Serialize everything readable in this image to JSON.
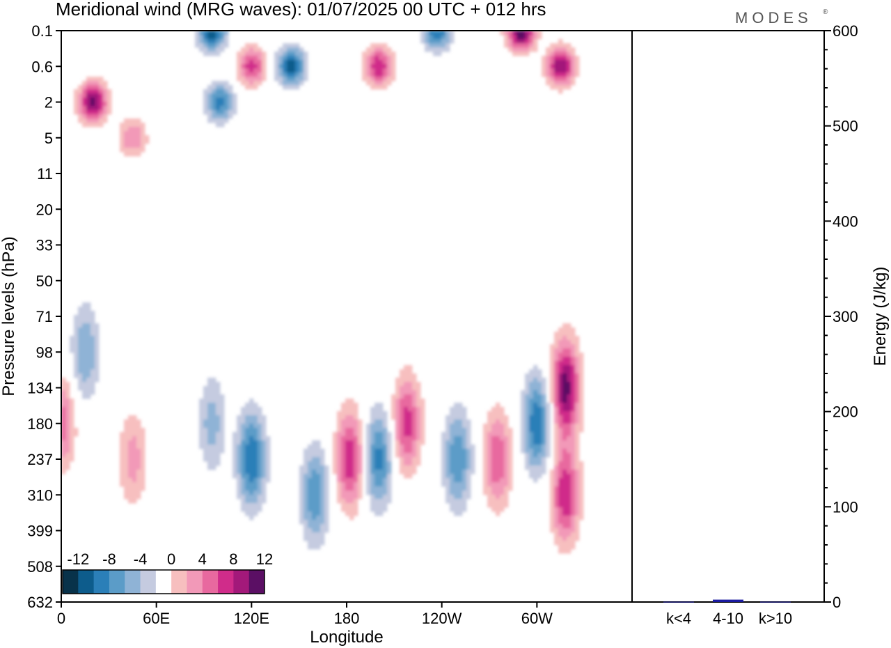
{
  "chart_data": [
    {
      "type": "heatmap",
      "title": "Meridional wind (MRG waves):  01/07/2025  00 UTC  + 012 hrs",
      "xlabel": "Longitude",
      "ylabel": "Pressure levels (hPa)",
      "x_ticks": [
        "0",
        "60E",
        "120E",
        "180",
        "120W",
        "60W"
      ],
      "y_ticks": [
        "0.1",
        "0.6",
        "2",
        "5",
        "11",
        "20",
        "33",
        "50",
        "71",
        "98",
        "134",
        "180",
        "237",
        "310",
        "399",
        "508",
        "632"
      ],
      "colorbar": {
        "tick_labels": [
          "-12",
          "-8",
          "-4",
          "0",
          "4",
          "8",
          "12"
        ],
        "levels": [
          -14,
          -12,
          -10,
          -8,
          -6,
          -4,
          -2,
          2,
          4,
          6,
          8,
          10,
          12,
          14
        ],
        "colors": [
          "#08324a",
          "#0d5c8c",
          "#2b7fb8",
          "#5b9cc8",
          "#8fb3d6",
          "#c5cbe0",
          "#ffffff",
          "#f7bfbf",
          "#f299b8",
          "#e8699f",
          "#d02c8a",
          "#a3197a",
          "#5b0f64"
        ]
      },
      "features": [
        {
          "lon": 20,
          "level": "2",
          "value": 13
        },
        {
          "lon": 45,
          "level": "5",
          "value": 6
        },
        {
          "lon": 120,
          "level": "0.6",
          "value": 9
        },
        {
          "lon": 100,
          "level": "2",
          "value": -9
        },
        {
          "lon": 145,
          "level": "0.6",
          "value": -11
        },
        {
          "lon": 95,
          "level": "0.1",
          "value": -12
        },
        {
          "lon": 200,
          "level": "0.6",
          "value": 10
        },
        {
          "lon": 237,
          "level": "0.1",
          "value": -10
        },
        {
          "lon": 290,
          "level": "0.1",
          "value": 14
        },
        {
          "lon": 315,
          "level": "0.6",
          "value": 12
        },
        {
          "lon": 15,
          "level": "98",
          "value": -6
        },
        {
          "lon": 45,
          "level": "237",
          "value": 5
        },
        {
          "lon": 95,
          "level": "180",
          "value": -5
        },
        {
          "lon": 120,
          "level": "237",
          "value": -10
        },
        {
          "lon": 160,
          "level": "310",
          "value": -8
        },
        {
          "lon": 182,
          "level": "237",
          "value": 10
        },
        {
          "lon": 200,
          "level": "237",
          "value": -9
        },
        {
          "lon": 218,
          "level": "180",
          "value": 9
        },
        {
          "lon": 250,
          "level": "237",
          "value": -8
        },
        {
          "lon": 275,
          "level": "237",
          "value": 8
        },
        {
          "lon": 300,
          "level": "180",
          "value": -10
        },
        {
          "lon": 318,
          "level": "134",
          "value": 13
        },
        {
          "lon": 318,
          "level": "310",
          "value": 10
        },
        {
          "lon": 0,
          "level": "180",
          "value": 7
        }
      ]
    },
    {
      "type": "bar",
      "categories": [
        "k<4",
        "4-10",
        "k>10"
      ],
      "values": [
        0.3,
        2.5,
        0.3
      ],
      "ylabel": "Energy (J/kg)",
      "ylim": [
        0,
        600
      ],
      "y_ticks": [
        "0",
        "100",
        "200",
        "300",
        "400",
        "500",
        "600"
      ],
      "bar_color": "#1a1aa0"
    }
  ],
  "logo": {
    "text": "MODES",
    "mark": "®"
  }
}
